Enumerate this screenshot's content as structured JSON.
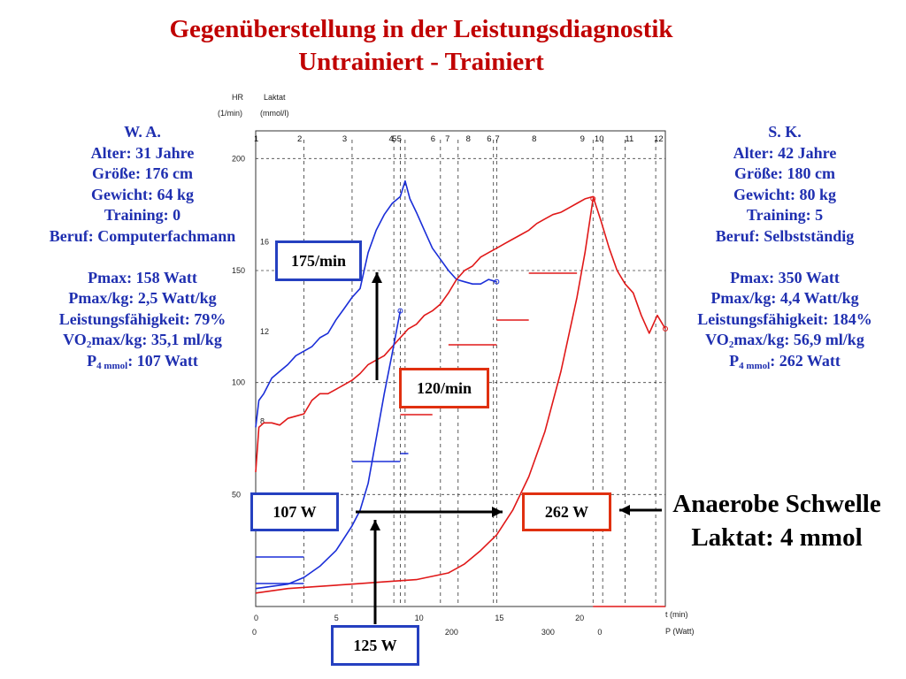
{
  "title": {
    "line1": "Gegenüberstellung in der Leistungsdiagnostik",
    "line2": "Untrainiert - Trainiert"
  },
  "left_person": {
    "name": "W. A.",
    "age": "Alter: 31 Jahre",
    "height": "Größe: 176 cm",
    "weight": "Gewicht: 64 kg",
    "training": "Training: 0",
    "job": "Beruf: Computerfachmann",
    "pmax": "Pmax: 158 Watt",
    "pmax_kg": "Pmax/kg: 2,5 Watt/kg",
    "capacity": "Leistungsfähigkeit: 79%",
    "vo2_pre": "VO",
    "vo2_sub": "2",
    "vo2_post": "max/kg: 35,1 ml/kg",
    "p4_pre": "P",
    "p4_sub": "4 mmol",
    "p4_post": ": 107 Watt"
  },
  "right_person": {
    "name": "S. K.",
    "age": "Alter: 42 Jahre",
    "height": "Größe: 180 cm",
    "weight": "Gewicht: 80 kg",
    "training": "Training: 5",
    "job": "Beruf: Selbstständig",
    "pmax": "Pmax: 350 Watt",
    "pmax_kg": "Pmax/kg: 4,4 Watt/kg",
    "capacity": "Leistungsfähigkeit: 184%",
    "vo2_pre": "VO",
    "vo2_sub": "2",
    "vo2_post": "max/kg: 56,9 ml/kg",
    "p4_pre": "P",
    "p4_sub": "4 mmol",
    "p4_post": ": 262 Watt"
  },
  "callouts": {
    "hr_trained": "175/min",
    "hr_untrained": "120/min",
    "p4_untrained": "107 W",
    "p4_trained": "262 W",
    "below": "125 W"
  },
  "anaerobic": {
    "line1": "Anaerobe Schwelle",
    "line2": "Laktat: 4 mmol"
  },
  "colors": {
    "blue": "#1f2fb0",
    "red": "#c00000",
    "curve_blue": "#1a2ed8",
    "curve_red": "#e01818"
  },
  "chart_data": {
    "type": "line",
    "axis_labels": {
      "hr": "HR",
      "hr_unit": "(1/min)",
      "lactate": "Laktat",
      "lactate_unit": "(mmol/l)",
      "time": "t (min)",
      "power": "P (Watt)"
    },
    "y_hr_ticks": [
      "50",
      "100",
      "150",
      "200"
    ],
    "y_lactate_ticks": [
      "8",
      "12",
      "16"
    ],
    "x_time_ticks": [
      "0",
      "5",
      "10",
      "15",
      "20"
    ],
    "x_power_ticks": [
      "0",
      "200",
      "300",
      "0"
    ],
    "top_markers": [
      "1",
      "2",
      "3",
      "4",
      "5",
      "5",
      "6",
      "7",
      "8",
      "6",
      "7",
      "8",
      "9",
      "10",
      "11",
      "12"
    ],
    "xlim": [
      0,
      25.5
    ],
    "hr_ylim": [
      0,
      210
    ],
    "lactate_ylim": [
      0,
      21
    ],
    "series": [
      {
        "name": "",
        "color": "#1a2ed8",
        "kind": "heart_rate_untrained",
        "x": [
          0,
          0.2,
          0.5,
          1,
          1.5,
          2,
          2.5,
          3,
          3.5,
          4,
          4.5,
          5,
          5.5,
          6,
          6.5,
          7,
          7.5,
          8,
          8.5,
          9,
          9.3,
          9.6,
          10,
          10.5,
          11,
          11.5,
          12,
          12.5,
          13,
          13.5,
          14,
          14.5,
          15
        ],
        "values": [
          80,
          92,
          95,
          102,
          105,
          108,
          112,
          114,
          116,
          120,
          122,
          128,
          133,
          138,
          142,
          158,
          168,
          175,
          180,
          183,
          190,
          182,
          176,
          168,
          160,
          155,
          150,
          146,
          145,
          144,
          144,
          146,
          145
        ]
      },
      {
        "name": "",
        "color": "#e01818",
        "kind": "heart_rate_trained",
        "x": [
          0,
          0.2,
          0.5,
          1,
          1.5,
          2,
          2.5,
          3,
          3.5,
          4,
          4.5,
          5,
          5.5,
          6,
          6.5,
          7,
          7.5,
          8,
          8.5,
          9,
          9.5,
          10,
          10.5,
          11,
          11.5,
          12,
          12.5,
          13,
          13.5,
          14,
          14.5,
          15,
          15.5,
          16,
          16.5,
          17,
          17.5,
          18,
          18.5,
          19,
          19.5,
          20,
          20.5,
          21,
          21.5,
          22,
          22.5,
          23,
          23.5,
          24,
          24.5,
          25,
          25.5
        ],
        "values": [
          60,
          80,
          82,
          82,
          81,
          84,
          85,
          86,
          92,
          95,
          95,
          97,
          99,
          101,
          104,
          108,
          110,
          112,
          116,
          120,
          124,
          126,
          130,
          132,
          135,
          140,
          146,
          150,
          152,
          156,
          158,
          160,
          162,
          164,
          166,
          168,
          171,
          173,
          175,
          176,
          178,
          180,
          182,
          183,
          172,
          160,
          150,
          144,
          140,
          130,
          122,
          130,
          124
        ]
      },
      {
        "name": "",
        "color": "#1a2ed8",
        "kind": "lactate_untrained",
        "x": [
          0,
          1,
          2,
          3,
          4,
          5,
          6,
          6.5,
          7,
          7.5,
          8,
          8.5,
          9
        ],
        "values": [
          0.8,
          0.9,
          1.0,
          1.3,
          1.8,
          2.5,
          3.6,
          4.3,
          5.5,
          7.5,
          9.5,
          11.3,
          13.2
        ]
      },
      {
        "name": "",
        "color": "#e01818",
        "kind": "lactate_trained",
        "x": [
          0,
          2,
          4,
          6,
          8,
          10,
          12,
          13,
          14,
          15,
          16,
          17,
          18,
          19,
          20,
          20.5,
          21
        ],
        "values": [
          0.6,
          0.8,
          0.9,
          1.0,
          1.1,
          1.2,
          1.5,
          1.9,
          2.5,
          3.2,
          4.3,
          5.8,
          7.8,
          10.5,
          13.8,
          15.8,
          18.2
        ]
      }
    ],
    "grid": true,
    "legend": "none"
  }
}
